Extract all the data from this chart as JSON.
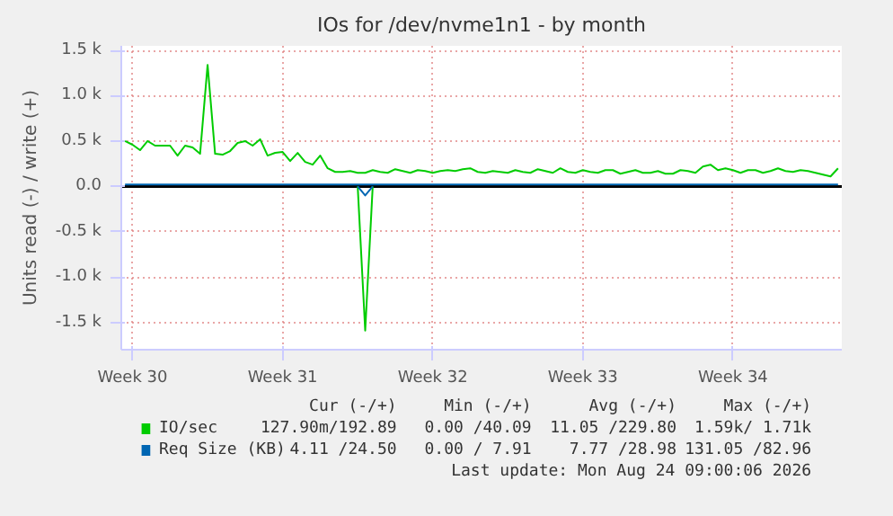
{
  "chart_data": {
    "type": "line",
    "title": "IOs for /dev/nvme1n1 - by month",
    "ylabel": "Units read (-) / write (+)",
    "categories": [
      null,
      "Week 30",
      null,
      null,
      null,
      null,
      null,
      null,
      null,
      null,
      null,
      null,
      null,
      null,
      null,
      null,
      null,
      null,
      null,
      null,
      null,
      "Week 31",
      null,
      null,
      null,
      null,
      null,
      null,
      null,
      null,
      null,
      null,
      null,
      null,
      null,
      null,
      null,
      null,
      null,
      null,
      null,
      "Week 32",
      null,
      null,
      null,
      null,
      null,
      null,
      null,
      null,
      null,
      null,
      null,
      null,
      null,
      null,
      null,
      null,
      null,
      null,
      null,
      "Week 33",
      null,
      null,
      null,
      null,
      null,
      null,
      null,
      null,
      null,
      null,
      null,
      null,
      null,
      null,
      null,
      null,
      null,
      null,
      null,
      "Week 34",
      null,
      null,
      null,
      null,
      null,
      null,
      null,
      null,
      null,
      null,
      null,
      null,
      null,
      null
    ],
    "ylim": [
      -1800,
      1550
    ],
    "yticks": [
      {
        "value": -1500,
        "label": "-1.5 k"
      },
      {
        "value": -1000,
        "label": "-1.0 k"
      },
      {
        "value": -500,
        "label": "-0.5 k"
      },
      {
        "value": 0,
        "label": "0.0"
      },
      {
        "value": 500,
        "label": "0.5 k"
      },
      {
        "value": 1000,
        "label": "1.0 k"
      },
      {
        "value": 1500,
        "label": "1.5 k"
      }
    ],
    "grid": true,
    "legend": "bottom",
    "marker": "none",
    "line_style": "solid",
    "ref_lines": [
      {
        "axis": "y",
        "value": 0,
        "label": null,
        "color": "#000000"
      }
    ],
    "series": [
      {
        "name": "IO/sec",
        "color": "#00cc00",
        "values": [
          500,
          460,
          400,
          500,
          450,
          450,
          450,
          340,
          450,
          430,
          360,
          1340,
          360,
          350,
          390,
          480,
          500,
          450,
          520,
          340,
          370,
          380,
          280,
          370,
          270,
          240,
          340,
          200,
          160,
          160,
          170,
          150,
          150,
          180,
          160,
          150,
          190,
          170,
          150,
          180,
          170,
          150,
          170,
          180,
          170,
          190,
          200,
          160,
          150,
          170,
          160,
          150,
          180,
          160,
          150,
          190,
          170,
          150,
          200,
          160,
          150,
          180,
          160,
          150,
          180,
          180,
          140,
          160,
          180,
          150,
          150,
          170,
          140,
          140,
          180,
          170,
          150,
          220,
          240,
          180,
          200,
          180,
          150,
          180,
          180,
          150,
          170,
          200,
          170,
          160,
          180,
          170,
          150,
          130,
          110,
          200
        ]
      },
      {
        "color": "#00cc00",
        "values": [
          null,
          null,
          null,
          null,
          null,
          null,
          null,
          null,
          null,
          null,
          null,
          null,
          null,
          null,
          null,
          null,
          null,
          null,
          null,
          null,
          null,
          null,
          null,
          null,
          null,
          null,
          null,
          null,
          null,
          null,
          null,
          0,
          -1590,
          0,
          null,
          null,
          null,
          null,
          null,
          null,
          null,
          null,
          null,
          null,
          null,
          null,
          null,
          null,
          null,
          null,
          null,
          null,
          null,
          null,
          null,
          null,
          null,
          null,
          null,
          null,
          null,
          null,
          null,
          null,
          null,
          null,
          null,
          null,
          null,
          null,
          null,
          null,
          null,
          null,
          null,
          null,
          null,
          null,
          null,
          null,
          null,
          null,
          null,
          null,
          null,
          null,
          null,
          null,
          null,
          null,
          null,
          null,
          null,
          null,
          null,
          null
        ]
      },
      {
        "name": "Req Size (KB)",
        "color": "#0066b3",
        "values": [
          20,
          20,
          20,
          20,
          20,
          20,
          20,
          20,
          20,
          20,
          20,
          20,
          20,
          20,
          20,
          20,
          20,
          20,
          20,
          20,
          20,
          20,
          20,
          20,
          20,
          20,
          20,
          20,
          20,
          20,
          20,
          20,
          20,
          20,
          20,
          20,
          20,
          20,
          20,
          20,
          20,
          20,
          20,
          20,
          20,
          20,
          20,
          20,
          20,
          20,
          20,
          20,
          20,
          20,
          20,
          20,
          20,
          20,
          20,
          20,
          20,
          20,
          20,
          20,
          20,
          20,
          20,
          20,
          20,
          20,
          20,
          20,
          20,
          20,
          20,
          20,
          20,
          20,
          20,
          20,
          20,
          20,
          20,
          20,
          20,
          20,
          20,
          20,
          20,
          20,
          20,
          20,
          20,
          20,
          20,
          20
        ]
      },
      {
        "color": "#0066b3",
        "values": [
          null,
          null,
          null,
          null,
          null,
          null,
          null,
          null,
          null,
          null,
          null,
          null,
          null,
          null,
          null,
          null,
          null,
          null,
          null,
          null,
          null,
          null,
          null,
          null,
          null,
          null,
          null,
          null,
          null,
          null,
          null,
          0,
          -100,
          0,
          null,
          null,
          null,
          null,
          null,
          null,
          null,
          null,
          null,
          null,
          null,
          null,
          null,
          null,
          null,
          null,
          null,
          null,
          null,
          null,
          null,
          null,
          null,
          null,
          null,
          null,
          null,
          null,
          null,
          null,
          null,
          null,
          null,
          null,
          null,
          null,
          null,
          null,
          null,
          null,
          null,
          null,
          null,
          null,
          null,
          null,
          null,
          null,
          null,
          null,
          null,
          null,
          null,
          null,
          null,
          null,
          null,
          null,
          null,
          null,
          null,
          null
        ]
      }
    ],
    "annotations": [
      "Cur (-/+)",
      "Min (-/+)",
      "Avg (-/+)",
      "Max (-/+)",
      "127.90m/192.89",
      "0.00 /40.09",
      "11.05 /229.80",
      "1.59k/ 1.71k",
      "4.11 /24.50",
      "0.00 / 7.91",
      "7.77 /28.98",
      "131.05 /82.96",
      "Last update: Mon Aug 24 09:00:06 2026"
    ]
  }
}
